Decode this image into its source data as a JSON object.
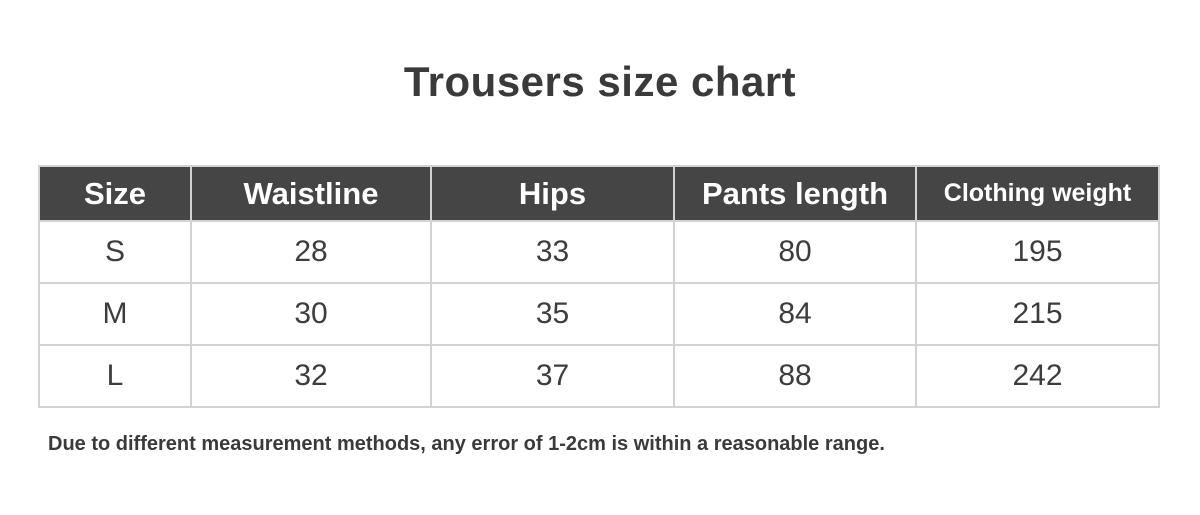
{
  "page_title": "Trousers size chart",
  "chart_data": {
    "type": "table",
    "title": "Trousers size chart",
    "columns": [
      "Size",
      "Waistline",
      "Hips",
      "Pants length",
      "Clothing weight"
    ],
    "rows": [
      [
        "S",
        "28",
        "33",
        "80",
        "195"
      ],
      [
        "M",
        "30",
        "35",
        "84",
        "215"
      ],
      [
        "L",
        "32",
        "37",
        "88",
        "242"
      ]
    ],
    "note": "Due to different measurement methods, any error of 1-2cm is within a reasonable range."
  },
  "colors": {
    "header_bg": "#454545",
    "header_text": "#ffffff",
    "body_text": "#3d3d3d",
    "title_text": "#3a3a3a",
    "border": "#d2d2d2",
    "page_bg": "#ffffff"
  }
}
